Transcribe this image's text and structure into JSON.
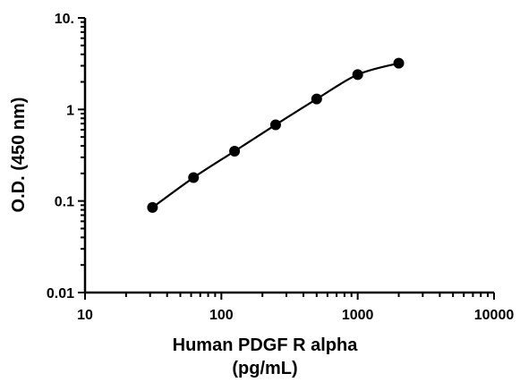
{
  "chart_data": {
    "type": "scatter",
    "title": "",
    "xlabel_lines": [
      "Human PDGF R alpha",
      "(pg/mL)"
    ],
    "ylabel": "O.D. (450 nm)",
    "x_scale": "log",
    "y_scale": "log",
    "xlim": [
      10,
      10000
    ],
    "ylim": [
      0.01,
      10
    ],
    "x_ticks": [
      10,
      100,
      1000,
      10000
    ],
    "x_tick_labels": [
      "10",
      "100",
      "1000",
      "10000"
    ],
    "y_ticks": [
      0.01,
      0.1,
      1,
      10
    ],
    "y_tick_labels": [
      "0.01",
      "0.1",
      "1",
      "10."
    ],
    "grid": false,
    "legend": "none",
    "series": [
      {
        "x": [
          31.25,
          62.5,
          125,
          250,
          500,
          1000,
          2000
        ],
        "y": [
          0.085,
          0.18,
          0.35,
          0.68,
          1.3,
          2.4,
          3.2
        ],
        "marker": "filled-circle",
        "fit_curve": true
      }
    ],
    "colors": {
      "axis": "#000000",
      "marker": "#000000",
      "curve": "#000000"
    }
  }
}
